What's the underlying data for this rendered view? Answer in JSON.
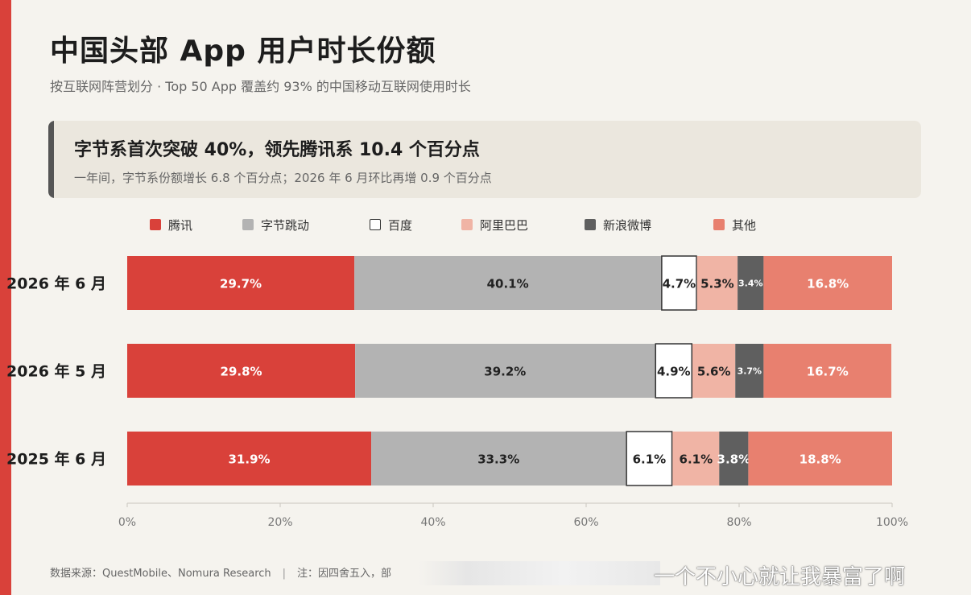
{
  "title": "中国头部 App 用户时长份额",
  "subtitle": "按互联网阵营划分 · Top 50 App 覆盖约 93% 的中国移动互联网使用时长",
  "callout": {
    "headline": "字节系首次突破 40%，领先腾讯系 10.4 个百分点",
    "detail": "一年间，字节系份额增长 6.8 个百分点；2026 年 6 月环比再增 0.9 个百分点"
  },
  "footer": {
    "source": "数据来源：QuestMobile、Nomura Research",
    "separator": "|",
    "note": "注：因四舍五入，部"
  },
  "watermark": "一个不小心就让我暴富了啊",
  "colors": {
    "accent": "#d9413a"
  },
  "chart_data": {
    "type": "bar",
    "orientation": "horizontal",
    "stacked": true,
    "categories": [
      "2026 年 6 月",
      "2026 年 5 月",
      "2025 年 6 月"
    ],
    "xlim": [
      0,
      100
    ],
    "xticks": [
      "0%",
      "20%",
      "40%",
      "60%",
      "80%",
      "100%"
    ],
    "legend_position": "top",
    "series": [
      {
        "name": "腾讯",
        "color": "#d9413a",
        "values": [
          29.7,
          29.8,
          31.9
        ],
        "labels": [
          "29.7%",
          "29.8%",
          "31.9%"
        ],
        "label_color": "#ffffff"
      },
      {
        "name": "字节跳动",
        "color": "#b3b3b3",
        "values": [
          40.1,
          39.2,
          33.3
        ],
        "labels": [
          "40.1%",
          "39.2%",
          "33.3%"
        ],
        "label_color": "#222222"
      },
      {
        "name": "百度",
        "color": "#ffffff",
        "stroke": "#333333",
        "values": [
          4.7,
          4.9,
          6.1
        ],
        "labels": [
          "4.7%",
          "4.9%",
          "6.1%"
        ],
        "label_color": "#222222"
      },
      {
        "name": "阿里巴巴",
        "color": "#f0b4a5",
        "values": [
          5.3,
          5.6,
          6.1
        ],
        "labels": [
          "5.3%",
          "5.6%",
          "6.1%"
        ],
        "label_color": "#222222"
      },
      {
        "name": "新浪微博",
        "color": "#5f5f5f",
        "values": [
          3.4,
          3.7,
          3.8
        ],
        "labels": [
          "3.4%",
          "3.7%",
          "3.8%"
        ],
        "label_color": "#ffffff"
      },
      {
        "name": "其他",
        "color": "#e8806f",
        "values": [
          16.8,
          16.7,
          18.8
        ],
        "labels": [
          "16.8%",
          "16.7%",
          "18.8%"
        ],
        "label_color": "#ffffff"
      }
    ]
  }
}
